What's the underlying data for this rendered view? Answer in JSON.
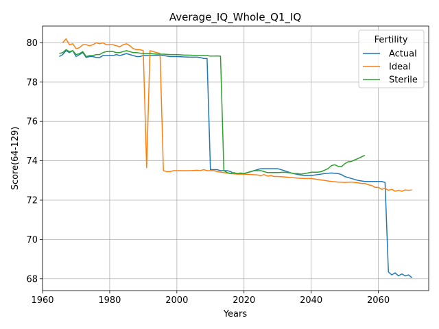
{
  "chart_data": {
    "type": "line",
    "title": "Average_IQ_Whole_Q1_IQ",
    "xlabel": "Years",
    "ylabel": "Score(64-129)",
    "xlim": [
      1960,
      2075
    ],
    "ylim": [
      67.4,
      80.85
    ],
    "xticks": [
      1960,
      1980,
      2000,
      2020,
      2040,
      2060
    ],
    "yticks": [
      68,
      70,
      72,
      74,
      76,
      78,
      80
    ],
    "grid": true,
    "legend": {
      "title": "Fertility",
      "placement": "top-right"
    },
    "series": [
      {
        "name": "Actual",
        "color": "#1f77b4",
        "points": [
          [
            1965,
            79.3
          ],
          [
            1966,
            79.4
          ],
          [
            1967,
            79.6
          ],
          [
            1968,
            79.5
          ],
          [
            1969,
            79.6
          ],
          [
            1970,
            79.3
          ],
          [
            1971,
            79.4
          ],
          [
            1972,
            79.5
          ],
          [
            1973,
            79.25
          ],
          [
            1974,
            79.3
          ],
          [
            1975,
            79.3
          ],
          [
            1976,
            79.25
          ],
          [
            1977,
            79.25
          ],
          [
            1978,
            79.35
          ],
          [
            1979,
            79.35
          ],
          [
            1980,
            79.35
          ],
          [
            1981,
            79.35
          ],
          [
            1982,
            79.4
          ],
          [
            1983,
            79.35
          ],
          [
            1984,
            79.4
          ],
          [
            1985,
            79.45
          ],
          [
            1986,
            79.4
          ],
          [
            1987,
            79.35
          ],
          [
            1988,
            79.3
          ],
          [
            1989,
            79.3
          ],
          [
            1990,
            79.35
          ],
          [
            1992,
            79.35
          ],
          [
            1994,
            79.35
          ],
          [
            1996,
            79.35
          ],
          [
            1998,
            79.3
          ],
          [
            2000,
            79.3
          ],
          [
            2002,
            79.28
          ],
          [
            2004,
            79.27
          ],
          [
            2006,
            79.27
          ],
          [
            2007,
            79.25
          ],
          [
            2008,
            79.2
          ],
          [
            2009,
            79.2
          ],
          [
            2010,
            73.55
          ],
          [
            2012,
            73.55
          ],
          [
            2013,
            73.5
          ],
          [
            2015,
            73.5
          ],
          [
            2016,
            73.45
          ],
          [
            2017,
            73.35
          ],
          [
            2018,
            73.35
          ],
          [
            2020,
            73.35
          ],
          [
            2022,
            73.45
          ],
          [
            2024,
            73.55
          ],
          [
            2025,
            73.6
          ],
          [
            2027,
            73.6
          ],
          [
            2029,
            73.6
          ],
          [
            2030,
            73.6
          ],
          [
            2032,
            73.5
          ],
          [
            2034,
            73.38
          ],
          [
            2036,
            73.3
          ],
          [
            2038,
            73.25
          ],
          [
            2040,
            73.25
          ],
          [
            2042,
            73.3
          ],
          [
            2044,
            73.35
          ],
          [
            2046,
            73.38
          ],
          [
            2048,
            73.35
          ],
          [
            2049,
            73.3
          ],
          [
            2050,
            73.2
          ],
          [
            2052,
            73.1
          ],
          [
            2054,
            73.0
          ],
          [
            2056,
            72.95
          ],
          [
            2058,
            72.95
          ],
          [
            2060,
            72.95
          ],
          [
            2061,
            72.95
          ],
          [
            2062,
            72.9
          ],
          [
            2063,
            68.35
          ],
          [
            2064,
            68.2
          ],
          [
            2065,
            68.3
          ],
          [
            2066,
            68.15
          ],
          [
            2067,
            68.25
          ],
          [
            2068,
            68.15
          ],
          [
            2069,
            68.2
          ],
          [
            2070,
            68.05
          ]
        ]
      },
      {
        "name": "Ideal",
        "color": "#ff7f0e",
        "points": [
          [
            1966,
            80.0
          ],
          [
            1967,
            80.2
          ],
          [
            1968,
            79.9
          ],
          [
            1969,
            79.95
          ],
          [
            1970,
            79.7
          ],
          [
            1971,
            79.75
          ],
          [
            1972,
            79.9
          ],
          [
            1973,
            79.9
          ],
          [
            1974,
            79.85
          ],
          [
            1975,
            79.9
          ],
          [
            1976,
            80.0
          ],
          [
            1977,
            79.95
          ],
          [
            1978,
            80.0
          ],
          [
            1979,
            79.9
          ],
          [
            1980,
            79.9
          ],
          [
            1981,
            79.9
          ],
          [
            1982,
            79.85
          ],
          [
            1983,
            79.8
          ],
          [
            1984,
            79.9
          ],
          [
            1985,
            79.95
          ],
          [
            1986,
            79.85
          ],
          [
            1987,
            79.7
          ],
          [
            1988,
            79.65
          ],
          [
            1989,
            79.65
          ],
          [
            1990,
            79.6
          ],
          [
            1991,
            73.65
          ],
          [
            1992,
            79.6
          ],
          [
            1993,
            79.55
          ],
          [
            1994,
            79.5
          ],
          [
            1995,
            79.45
          ],
          [
            1996,
            73.5
          ],
          [
            1997,
            73.45
          ],
          [
            1998,
            73.45
          ],
          [
            1999,
            73.5
          ],
          [
            2000,
            73.5
          ],
          [
            2002,
            73.5
          ],
          [
            2004,
            73.5
          ],
          [
            2006,
            73.52
          ],
          [
            2007,
            73.5
          ],
          [
            2008,
            73.55
          ],
          [
            2009,
            73.5
          ],
          [
            2011,
            73.5
          ],
          [
            2012,
            73.45
          ],
          [
            2014,
            73.4
          ],
          [
            2016,
            73.35
          ],
          [
            2018,
            73.32
          ],
          [
            2020,
            73.32
          ],
          [
            2022,
            73.3
          ],
          [
            2024,
            73.28
          ],
          [
            2025,
            73.25
          ],
          [
            2026,
            73.3
          ],
          [
            2027,
            73.22
          ],
          [
            2028,
            73.25
          ],
          [
            2029,
            73.2
          ],
          [
            2030,
            73.2
          ],
          [
            2032,
            73.18
          ],
          [
            2034,
            73.15
          ],
          [
            2036,
            73.12
          ],
          [
            2038,
            73.1
          ],
          [
            2040,
            73.1
          ],
          [
            2042,
            73.05
          ],
          [
            2044,
            73.0
          ],
          [
            2046,
            72.95
          ],
          [
            2048,
            72.92
          ],
          [
            2050,
            72.9
          ],
          [
            2052,
            72.92
          ],
          [
            2054,
            72.88
          ],
          [
            2055,
            72.85
          ],
          [
            2056,
            72.85
          ],
          [
            2057,
            72.78
          ],
          [
            2058,
            72.75
          ],
          [
            2059,
            72.65
          ],
          [
            2060,
            72.65
          ],
          [
            2061,
            72.55
          ],
          [
            2062,
            72.6
          ],
          [
            2063,
            72.5
          ],
          [
            2064,
            72.55
          ],
          [
            2065,
            72.45
          ],
          [
            2066,
            72.5
          ],
          [
            2067,
            72.45
          ],
          [
            2068,
            72.52
          ],
          [
            2069,
            72.5
          ],
          [
            2070,
            72.52
          ]
        ]
      },
      {
        "name": "Sterile",
        "color": "#2ca02c",
        "points": [
          [
            1965,
            79.45
          ],
          [
            1966,
            79.5
          ],
          [
            1967,
            79.65
          ],
          [
            1968,
            79.55
          ],
          [
            1969,
            79.6
          ],
          [
            1970,
            79.4
          ],
          [
            1971,
            79.45
          ],
          [
            1972,
            79.55
          ],
          [
            1973,
            79.3
          ],
          [
            1974,
            79.35
          ],
          [
            1975,
            79.35
          ],
          [
            1976,
            79.4
          ],
          [
            1977,
            79.4
          ],
          [
            1978,
            79.5
          ],
          [
            1979,
            79.55
          ],
          [
            1980,
            79.55
          ],
          [
            1981,
            79.55
          ],
          [
            1982,
            79.5
          ],
          [
            1983,
            79.5
          ],
          [
            1984,
            79.55
          ],
          [
            1985,
            79.6
          ],
          [
            1986,
            79.55
          ],
          [
            1987,
            79.5
          ],
          [
            1988,
            79.5
          ],
          [
            1990,
            79.45
          ],
          [
            1992,
            79.45
          ],
          [
            1994,
            79.42
          ],
          [
            1996,
            79.42
          ],
          [
            1998,
            79.4
          ],
          [
            2000,
            79.4
          ],
          [
            2002,
            79.38
          ],
          [
            2004,
            79.37
          ],
          [
            2006,
            79.35
          ],
          [
            2008,
            79.35
          ],
          [
            2009,
            79.35
          ],
          [
            2010,
            79.32
          ],
          [
            2012,
            79.33
          ],
          [
            2013,
            79.32
          ],
          [
            2014,
            73.5
          ],
          [
            2015,
            73.4
          ],
          [
            2016,
            73.35
          ],
          [
            2017,
            73.4
          ],
          [
            2018,
            73.35
          ],
          [
            2019,
            73.38
          ],
          [
            2020,
            73.35
          ],
          [
            2021,
            73.4
          ],
          [
            2022,
            73.45
          ],
          [
            2023,
            73.5
          ],
          [
            2025,
            73.5
          ],
          [
            2026,
            73.45
          ],
          [
            2027,
            73.4
          ],
          [
            2028,
            73.4
          ],
          [
            2030,
            73.4
          ],
          [
            2032,
            73.42
          ],
          [
            2034,
            73.38
          ],
          [
            2035,
            73.35
          ],
          [
            2036,
            73.35
          ],
          [
            2037,
            73.32
          ],
          [
            2038,
            73.35
          ],
          [
            2039,
            73.38
          ],
          [
            2040,
            73.42
          ],
          [
            2042,
            73.42
          ],
          [
            2043,
            73.45
          ],
          [
            2044,
            73.52
          ],
          [
            2045,
            73.6
          ],
          [
            2046,
            73.75
          ],
          [
            2047,
            73.8
          ],
          [
            2048,
            73.72
          ],
          [
            2049,
            73.7
          ],
          [
            2050,
            73.85
          ],
          [
            2051,
            73.95
          ],
          [
            2052,
            73.97
          ],
          [
            2053,
            74.05
          ],
          [
            2054,
            74.12
          ],
          [
            2055,
            74.2
          ],
          [
            2056,
            74.28
          ]
        ]
      }
    ]
  }
}
